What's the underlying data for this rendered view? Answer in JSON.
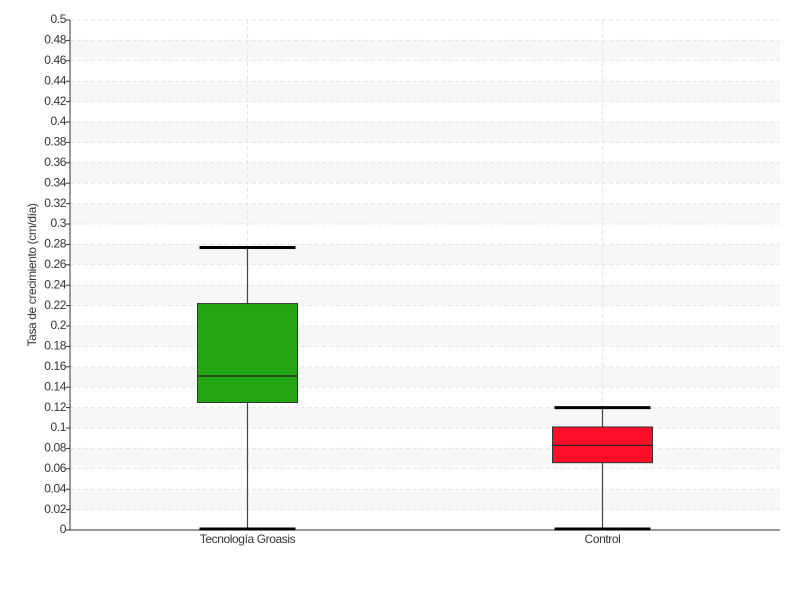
{
  "chart_data": {
    "type": "box",
    "ylabel": "Tasa de crecimiento (cm/día)",
    "categories": [
      "Tecnología Groasis",
      "Control"
    ],
    "boxes": [
      {
        "color": "#22a511",
        "min": 0,
        "q1": 0.125,
        "median": 0.151,
        "q3": 0.222,
        "max": 0.277
      },
      {
        "color": "#ff0e2a",
        "min": 0,
        "q1": 0.066,
        "median": 0.083,
        "q3": 0.101,
        "max": 0.12
      }
    ],
    "ylim": [
      0,
      0.5
    ],
    "yticks": [
      0,
      0.02,
      0.04,
      0.06,
      0.08,
      0.1,
      0.12,
      0.14,
      0.16,
      0.18,
      0.2,
      0.22,
      0.24,
      0.26,
      0.28,
      0.3,
      0.32,
      0.34,
      0.36,
      0.38,
      0.4,
      0.42,
      0.44,
      0.46,
      0.48,
      0.5
    ],
    "grid": true
  }
}
